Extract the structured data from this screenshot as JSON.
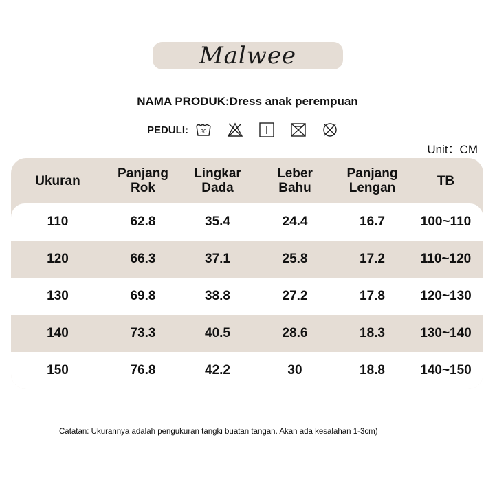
{
  "brand": {
    "logo_text": "Malwee"
  },
  "product": {
    "title": "NAMA PRODUK:Dress anak perempuan"
  },
  "care": {
    "label": "PEDULI:",
    "icons": [
      "wash-30-icon",
      "no-bleach-icon",
      "line-dry-icon",
      "no-tumble-dry-icon",
      "no-dry-clean-icon"
    ],
    "wash_temp": "30"
  },
  "unit": "Unit：CM",
  "table": {
    "headers": [
      [
        "Ukuran"
      ],
      [
        "Panjang",
        "Rok"
      ],
      [
        "Lingkar",
        "Dada"
      ],
      [
        "Leber",
        "Bahu"
      ],
      [
        "Panjang",
        "Lengan"
      ],
      [
        "TB"
      ]
    ],
    "rows": [
      [
        "110",
        "62.8",
        "35.4",
        "24.4",
        "16.7",
        "100~110"
      ],
      [
        "120",
        "66.3",
        "37.1",
        "25.8",
        "17.2",
        "110~120"
      ],
      [
        "130",
        "69.8",
        "38.8",
        "27.2",
        "17.8",
        "120~130"
      ],
      [
        "140",
        "73.3",
        "40.5",
        "28.6",
        "18.3",
        "130~140"
      ],
      [
        "150",
        "76.8",
        "42.2",
        "30",
        "18.8",
        "140~150"
      ]
    ]
  },
  "note": "Catatan: Ukurannya adalah pengukuran tangki buatan tangan. Akan ada kesalahan 1-3cm)",
  "colors": {
    "accent_bg": "#e5ddd5",
    "text": "#111111"
  }
}
